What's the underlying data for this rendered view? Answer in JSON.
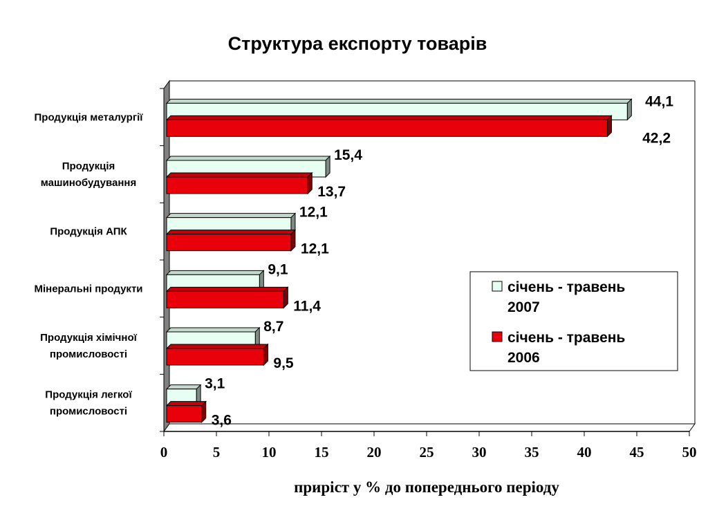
{
  "chart_data": {
    "type": "bar",
    "orientation": "horizontal",
    "title": "Структура експорту товарів",
    "xlabel": "приріст  у % до попереднього періоду",
    "ylabel": "",
    "xlim": [
      0,
      50
    ],
    "xticks": [
      0,
      5,
      10,
      15,
      20,
      25,
      30,
      35,
      40,
      45,
      50
    ],
    "categories": [
      [
        "Продукція металургії"
      ],
      [
        "Продукція",
        "машинобудування"
      ],
      [
        "Продукція АПК"
      ],
      [
        "Мінеральні продукти"
      ],
      [
        "Продукція хімічної",
        "промисловості"
      ],
      [
        "Продукція легкої",
        "промисловості"
      ]
    ],
    "series": [
      {
        "name": [
          "січень - травень",
          "2007"
        ],
        "color": "#e6fff2",
        "values": [
          44.1,
          15.4,
          12.1,
          9.1,
          8.7,
          3.1
        ],
        "labels": [
          "44,1",
          "15,4",
          "12,1",
          "9,1",
          "8,7",
          "3,1"
        ]
      },
      {
        "name": [
          "січень - травень",
          "2006"
        ],
        "color": "#e8000b",
        "values": [
          42.2,
          13.7,
          12.1,
          11.4,
          9.5,
          3.6
        ],
        "labels": [
          "42,2",
          "13,7",
          "12,1",
          "11,4",
          "9,5",
          "3,6"
        ]
      }
    ],
    "grid": false,
    "legend_position": "right"
  }
}
